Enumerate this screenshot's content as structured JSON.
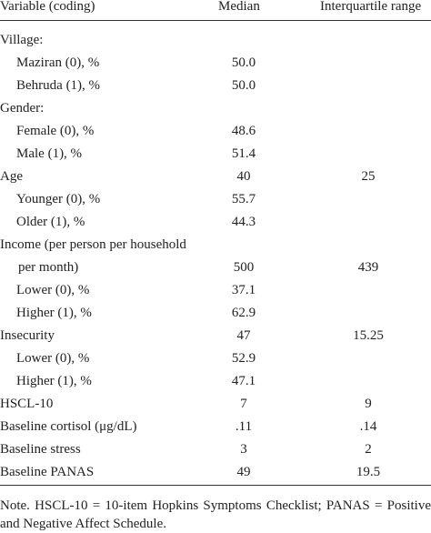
{
  "table": {
    "header": {
      "variable": "Variable (coding)",
      "median": "Median",
      "iqr": "Interquartile range"
    },
    "groups": [
      {
        "label": "Village:",
        "items": [
          {
            "label": "Maziran (0), %",
            "median": "50.0"
          },
          {
            "label": "Behruda (1), %",
            "median": "50.0"
          }
        ]
      },
      {
        "label": "Gender:",
        "items": [
          {
            "label": "Female (0), %",
            "median": "48.6"
          },
          {
            "label": "Male (1), %",
            "median": "51.4"
          }
        ]
      },
      {
        "label": "Age",
        "median": "40",
        "iqr": "25",
        "items": [
          {
            "label": "Younger (0), %",
            "median": "55.7"
          },
          {
            "label": "Older (1), %",
            "median": "44.3"
          }
        ]
      },
      {
        "label": "Income (per person per household per month)",
        "median": "500",
        "iqr": "439",
        "items": [
          {
            "label": "Lower (0), %",
            "median": "37.1"
          },
          {
            "label": "Higher (1), %",
            "median": "62.9"
          }
        ]
      },
      {
        "label": "Insecurity",
        "median": "47",
        "iqr": "15.25",
        "items": [
          {
            "label": "Lower (0), %",
            "median": "52.9"
          },
          {
            "label": "Higher (1), %",
            "median": "47.1"
          }
        ]
      },
      {
        "label": "HSCL-10",
        "median": "7",
        "iqr": "9",
        "items": []
      },
      {
        "label": "Baseline cortisol (μg/dL)",
        "median": ".11",
        "iqr": ".14",
        "items": []
      },
      {
        "label": "Baseline stress",
        "median": "3",
        "iqr": "2",
        "items": []
      },
      {
        "label": "Baseline PANAS",
        "median": "49",
        "iqr": "19.5",
        "items": []
      }
    ],
    "note": "Note. HSCL-10 = 10-item Hopkins Symptoms Checklist; PANAS = Positive and Negative Affect Schedule."
  }
}
